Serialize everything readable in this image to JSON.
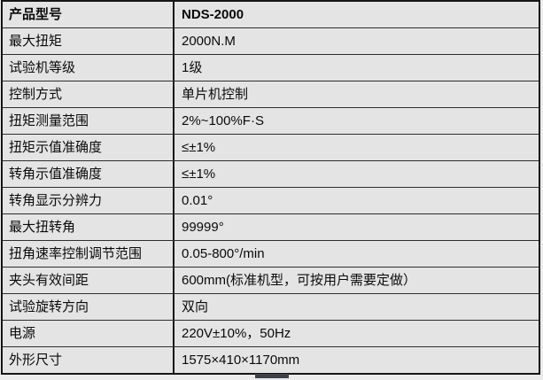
{
  "table": {
    "rows": [
      {
        "label": "产品型号",
        "value": "NDS-2000"
      },
      {
        "label": "最大扭矩",
        "value": "2000N.M"
      },
      {
        "label": "试验机等级",
        "value": "1级"
      },
      {
        "label": "控制方式",
        "value": "单片机控制"
      },
      {
        "label": "扭矩测量范围",
        "value": "2%~100%F·S"
      },
      {
        "label": "扭矩示值准确度",
        "value": "≤±1%"
      },
      {
        "label": "转角示值准确度",
        "value": "≤±1%"
      },
      {
        "label": "转角显示分辨力",
        "value": "0.01°"
      },
      {
        "label": "最大扭转角",
        "value": "99999°"
      },
      {
        "label": "扭角速率控制调节范围",
        "value": "0.05-800°/min"
      },
      {
        "label": "夹头有效间距",
        "value": "600mm(标准机型，可按用户需要定做）"
      },
      {
        "label": "试验旋转方向",
        "value": "双向"
      },
      {
        "label": "电源",
        "value": "220V±10%，50Hz"
      },
      {
        "label": "外形尺寸",
        "value": "1575×410×1170mm"
      }
    ]
  },
  "colors": {
    "page-bg": "#ebebeb",
    "cell-bg": "#e4e4e4",
    "border-dark": "#151515",
    "row-line": "#2e2e2e",
    "text": "#0a0a0a",
    "thumb": "#3d424a"
  }
}
